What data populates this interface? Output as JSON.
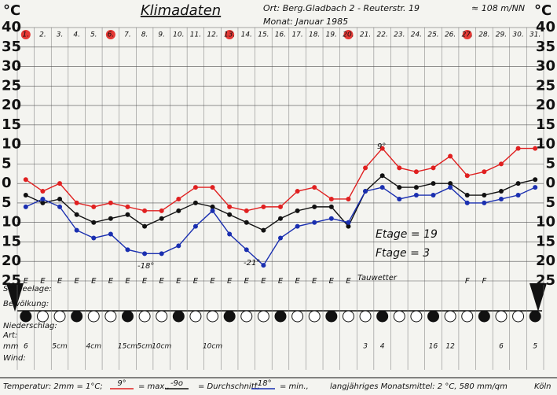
{
  "chart_data": {
    "type": "line",
    "title": "Klimadaten",
    "location": "Ort: Berg.Gladbach 2 - Reuterstr. 19",
    "altitude": "≈ 108 m/NN",
    "month": "Monat: Januar 1985",
    "y_unit": "°C",
    "categories": [
      "1.",
      "2.",
      "3.",
      "4.",
      "5.",
      "6.",
      "7.",
      "8.",
      "9.",
      "10.",
      "11.",
      "12.",
      "13.",
      "14.",
      "15.",
      "16.",
      "17.",
      "18.",
      "19.",
      "20.",
      "21.",
      "22.",
      "23.",
      "24.",
      "25.",
      "26.",
      "27.",
      "28.",
      "29.",
      "30.",
      "31."
    ],
    "sundays": [
      1,
      6,
      13,
      20,
      27
    ],
    "sunday_color": "#e53935",
    "ylim": [
      -25,
      40
    ],
    "yticks": [
      40,
      35,
      30,
      25,
      20,
      15,
      10,
      5,
      0,
      {
        "value": -5,
        "label": "5"
      },
      {
        "value": -10,
        "label": "10"
      },
      {
        "value": -15,
        "label": "15"
      },
      {
        "value": -20,
        "label": "20"
      },
      {
        "value": -25,
        "label": "25"
      }
    ],
    "grid": true,
    "series": [
      {
        "name": "max.",
        "legend_sample": "9°",
        "color": "#e02020",
        "values": [
          1,
          -2,
          0,
          -5,
          -6,
          -5,
          -6,
          -7,
          -7,
          -4,
          -1,
          -1,
          -6,
          -7,
          -6,
          -6,
          -2,
          -1,
          -4,
          -4,
          4,
          9,
          4,
          3,
          4,
          7,
          2,
          3,
          5,
          9,
          9
        ]
      },
      {
        "name": "Durchschnitt",
        "legend_sample": "-9o",
        "color": "#111111",
        "values": [
          -3,
          -5,
          -4,
          -8,
          -10,
          -9,
          -8,
          -11,
          -9,
          -7,
          -5,
          -6,
          -8,
          -10,
          -12,
          -9,
          -7,
          -6,
          -6,
          -11,
          -2,
          2,
          -1,
          -1,
          0,
          0,
          -3,
          -3,
          -2,
          0,
          1
        ]
      },
      {
        "name": "min.",
        "legend_sample": "-18°",
        "color": "#1a2fb0",
        "values": [
          -6,
          -4,
          -6,
          -12,
          -14,
          -13,
          -17,
          -18,
          -18,
          -16,
          -11,
          -7,
          -13,
          -17,
          -21,
          -14,
          -11,
          -10,
          -9,
          -10,
          -2,
          -1,
          -4,
          -3,
          -3,
          -1,
          -5,
          -5,
          -4,
          -3,
          -1
        ]
      }
    ],
    "annotations": [
      "9°",
      "-18°",
      "-21°",
      "Etage = 19",
      "Ftage = 3",
      "Tauwetter"
    ],
    "rows": {
      "snow_label": "Schneelage:",
      "cloud_label": "Bewölkung:",
      "precip_label": "Niederschlag:",
      "kind_label": "Art:",
      "mm_label": "mm",
      "wind_label": "Wind:"
    },
    "snow": [
      "E",
      "E",
      "E",
      "E",
      "E",
      "E",
      "E",
      "E",
      "E",
      "E",
      "E",
      "E",
      "E",
      "E",
      "E",
      "E",
      "E",
      "E",
      "E",
      "E",
      null,
      null,
      null,
      null,
      null,
      null,
      "F",
      "F",
      null,
      null,
      null
    ],
    "precip_mm": [
      "6",
      null,
      "5cm",
      null,
      "4cm",
      null,
      "15cm",
      "5cm",
      "10cm",
      null,
      null,
      "10cm",
      null,
      null,
      null,
      null,
      null,
      null,
      null,
      null,
      "3",
      "4",
      null,
      null,
      "16",
      "12",
      null,
      null,
      "6",
      null,
      "5"
    ],
    "footer": {
      "temp": "Temperatur: 2mm = 1°C;",
      "max": "= max.,",
      "mean": "= Durchschnitt;",
      "min": "= min.,",
      "longterm": "langjähriges Monatsmittel: 2 °C, 580 mm/qm",
      "station": "Köln"
    }
  }
}
